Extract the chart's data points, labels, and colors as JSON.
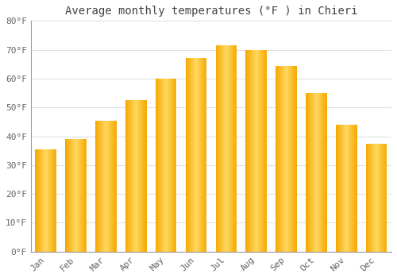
{
  "title": "Average monthly temperatures (°F ) in Chieri",
  "months": [
    "Jan",
    "Feb",
    "Mar",
    "Apr",
    "May",
    "Jun",
    "Jul",
    "Aug",
    "Sep",
    "Oct",
    "Nov",
    "Dec"
  ],
  "values": [
    35.5,
    39.0,
    45.5,
    52.5,
    60.0,
    67.0,
    71.5,
    70.0,
    64.5,
    55.0,
    44.0,
    37.5
  ],
  "bar_color_center": "#FFD860",
  "bar_color_edge": "#F5A800",
  "ylim": [
    0,
    80
  ],
  "ytick_step": 10,
  "background_color": "#ffffff",
  "grid_color": "#e0e0e0",
  "title_fontsize": 10,
  "tick_fontsize": 8,
  "tick_color": "#666666",
  "title_color": "#444444",
  "font_family": "monospace",
  "bar_width": 0.7
}
